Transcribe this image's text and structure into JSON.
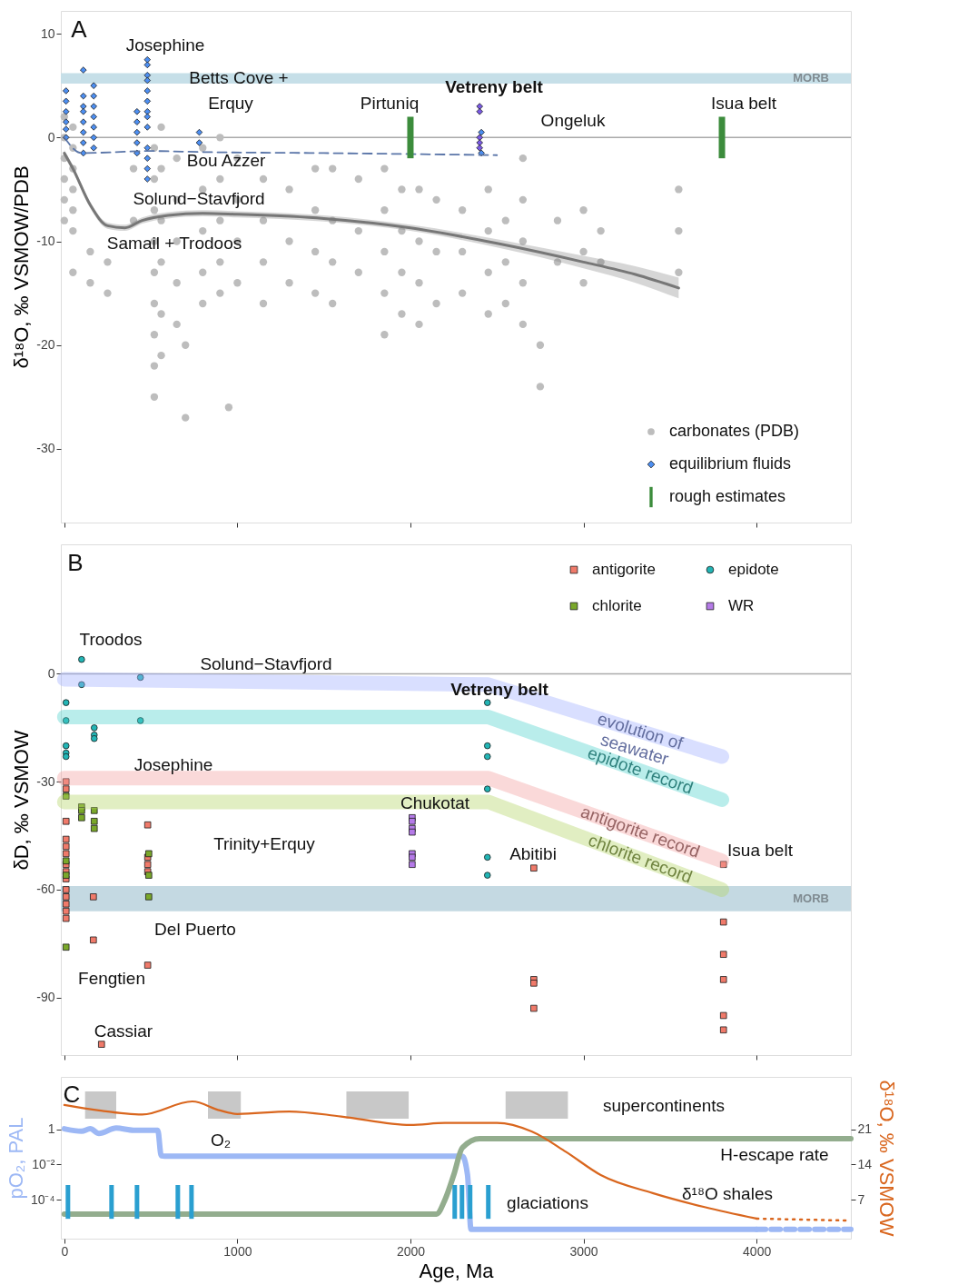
{
  "chart_data": [
    {
      "type": "scatter",
      "ylabel": "δ¹⁸O, ‰ VSMOW/PDB",
      "xlim": [
        -20,
        4545
      ],
      "xticks": [
        0,
        1000,
        2000,
        3000,
        4000
      ],
      "ylim": [
        -37.1,
        12.2
      ],
      "yticks": [
        -30,
        -20,
        -10,
        0,
        10
      ],
      "tick_labels": "y",
      "legend": "bottom right",
      "series": [
        {
          "name": "carbonates (PDB)",
          "marker": "circle",
          "color": "#bdbdbd",
          "x": [
            0,
            0,
            0,
            0,
            0,
            0,
            50,
            50,
            50,
            50,
            50,
            50,
            50,
            150,
            150,
            250,
            250,
            400,
            400,
            520,
            520,
            520,
            520,
            520,
            520,
            520,
            520,
            520,
            560,
            560,
            560,
            560,
            560,
            560,
            650,
            650,
            650,
            650,
            650,
            700,
            700,
            800,
            800,
            800,
            800,
            800,
            900,
            900,
            900,
            900,
            900,
            950,
            1000,
            1000,
            1000,
            1000,
            1150,
            1150,
            1150,
            1150,
            1300,
            1300,
            1300,
            1450,
            1450,
            1450,
            1450,
            1550,
            1550,
            1550,
            1550,
            1700,
            1700,
            1700,
            1850,
            1850,
            1850,
            1850,
            1850,
            1950,
            1950,
            1950,
            1950,
            2050,
            2050,
            2050,
            2050,
            2150,
            2150,
            2150,
            2300,
            2300,
            2300,
            2450,
            2450,
            2450,
            2450,
            2550,
            2550,
            2550,
            2650,
            2650,
            2650,
            2650,
            2650,
            2750,
            2750,
            2850,
            2850,
            3000,
            3000,
            3000,
            3100,
            3100,
            3550,
            3550,
            3550
          ],
          "values": [
            2,
            0,
            -2,
            -4,
            -6,
            -8,
            1,
            -1,
            -3,
            -5,
            -7,
            -9,
            -13,
            -11,
            -14,
            -12,
            -15,
            -3,
            -8,
            -1,
            -4,
            -7,
            -10,
            -13,
            -16,
            -19,
            -22,
            -25,
            1,
            -3,
            -8,
            -12,
            -17,
            -21,
            -2,
            -6,
            -10,
            -14,
            -18,
            -20,
            -27,
            -1,
            -5,
            -9,
            -13,
            -16,
            0,
            -4,
            -8,
            -12,
            -15,
            -26,
            -2,
            -6,
            -10,
            -14,
            -4,
            -8,
            -12,
            -16,
            -5,
            -10,
            -14,
            -3,
            -7,
            -11,
            -15,
            -3,
            -8,
            -12,
            -16,
            -4,
            -9,
            -13,
            -3,
            -7,
            -11,
            -15,
            -19,
            -5,
            -9,
            -13,
            -17,
            -5,
            -10,
            -14,
            -18,
            -6,
            -11,
            -16,
            -7,
            -11,
            -15,
            -5,
            -9,
            -13,
            -17,
            -8,
            -12,
            -16,
            -2,
            -6,
            -10,
            -14,
            -18,
            -20,
            -24,
            -8,
            -12,
            -7,
            -11,
            -14,
            -9,
            -12,
            -5,
            -9,
            -13
          ]
        },
        {
          "name": "equilibrium fluids",
          "marker": "diamond",
          "color": "#4d8ff2",
          "x": [
            10,
            10,
            10,
            10,
            10,
            10,
            110,
            110,
            110,
            110,
            110,
            110,
            110,
            110,
            170,
            170,
            170,
            170,
            170,
            170,
            170,
            420,
            420,
            420,
            420,
            420,
            480,
            480,
            480,
            480,
            480,
            480,
            480,
            480,
            480,
            480,
            480,
            480,
            480,
            780,
            780,
            2410,
            2410
          ],
          "values": [
            4.5,
            3.5,
            2.5,
            1.5,
            0.8,
            0,
            6.5,
            4,
            3,
            2.5,
            1.5,
            0.5,
            -0.5,
            -1.5,
            5,
            4,
            3,
            2,
            1,
            0,
            -1,
            2.5,
            1.5,
            0.5,
            -0.5,
            -1.5,
            7.5,
            7,
            6,
            5.5,
            4.5,
            3.5,
            2.5,
            2,
            1,
            -1,
            -2,
            -3,
            -4,
            0.5,
            -0.5,
            0.5,
            -1.5
          ]
        },
        {
          "marker": "diamond",
          "color": "#7a5ae6",
          "x": [
            2400,
            2400,
            2400,
            2400,
            2400
          ],
          "values": [
            3,
            2.5,
            0,
            -0.5,
            -1
          ]
        },
        {
          "type": "line",
          "color": "#777777",
          "x": [
            0,
            50,
            150,
            250,
            350,
            450,
            600,
            800,
            1000,
            1500,
            2000,
            2500,
            3000,
            3300,
            3550
          ],
          "values": [
            -1.5,
            -3,
            -6.5,
            -8.5,
            -8.7,
            -8,
            -7.5,
            -7.3,
            -7.4,
            -7.8,
            -8.7,
            -10.2,
            -12,
            -13.2,
            -14.5
          ],
          "lower": [
            -1.8,
            -3.3,
            -6.8,
            -8.8,
            -9,
            -8.3,
            -7.8,
            -7.6,
            -7.7,
            -8.1,
            -9,
            -10.6,
            -12.6,
            -14,
            -15.5
          ],
          "upper": [
            -1.2,
            -2.7,
            -6.2,
            -8.2,
            -8.4,
            -7.7,
            -7.2,
            -7,
            -7.1,
            -7.5,
            -8.4,
            -9.8,
            -11.4,
            -12.4,
            -13.5
          ]
        },
        {
          "type": "line",
          "color": "#5a75a8",
          "line_style": "dashed",
          "x": [
            0,
            100,
            500,
            800,
            1500,
            2500
          ],
          "values": [
            0,
            -1.5,
            -1.3,
            -1.4,
            -1.5,
            -1.7
          ]
        },
        {
          "name": "rough estimates",
          "type": "bar",
          "color": "#3c8c3c",
          "x": [
            2000,
            3800
          ],
          "base": [
            -2,
            -2
          ],
          "values": [
            4,
            4
          ]
        }
      ],
      "ref_lines": [
        {
          "axis": "y",
          "value": 0,
          "color": "#aaaaaa"
        }
      ],
      "bands": [
        {
          "axis": "y",
          "from": 5.2,
          "to": 6.2,
          "label": "MORB",
          "color": "#c6dfe8"
        }
      ],
      "annotations": [
        "A",
        "Josephine",
        "Betts Cove +",
        "Erquy",
        "Pirtuniq",
        "Vetreny belt",
        "Ongeluk",
        "Isua belt",
        "Bou Azzer",
        "Solund−Stavfjord",
        "Samail + Trodoos"
      ]
    },
    {
      "type": "scatter",
      "ylabel": "δD, ‰ VSMOW",
      "xlim": [
        -20,
        4545
      ],
      "xticks": [
        0,
        1000,
        2000,
        3000,
        4000
      ],
      "ylim": [
        -106,
        36
      ],
      "yticks": [
        -90,
        -60,
        -30,
        0
      ],
      "tick_labels": "y",
      "legend": "top right",
      "series": [
        {
          "name": "antigorite",
          "marker": "square",
          "color": "#f07a6a",
          "x": [
            10,
            10,
            10,
            10,
            10,
            10,
            10,
            10,
            10,
            10,
            10,
            10,
            10,
            10,
            168,
            168,
            482,
            482,
            482,
            482,
            482,
            215,
            2713,
            2713,
            2713,
            2713,
            3809,
            3809,
            3809,
            3809,
            3809,
            3809
          ],
          "values": [
            -30,
            -32,
            -41,
            -46,
            -48,
            -50,
            -53,
            -55,
            -57,
            -60,
            -62,
            -64,
            -66,
            -68,
            -62,
            -74,
            -42,
            -51,
            -53,
            -55,
            -81,
            -103,
            -54,
            -85,
            -86,
            -93,
            -53,
            -69,
            -78,
            -85,
            -95,
            -99
          ]
        },
        {
          "name": "chlorite",
          "marker": "square",
          "color": "#7aa82a",
          "x": [
            10,
            10,
            10,
            10,
            100,
            100,
            100,
            173,
            173,
            173,
            488,
            488,
            488
          ],
          "values": [
            -34,
            -52,
            -56,
            -76,
            -37,
            -38,
            -40,
            -38,
            -41,
            -43,
            -50,
            -56,
            -62
          ]
        },
        {
          "name": "epidote",
          "marker": "circle",
          "color": "#22b5b5",
          "x": [
            100,
            100,
            10,
            10,
            10,
            10,
            10,
            440,
            440,
            173,
            173,
            173,
            2445,
            2445,
            2445,
            2445,
            2445,
            2445
          ],
          "values": [
            4,
            -3,
            -8,
            -13,
            -20,
            -22,
            -23,
            -1,
            -13,
            -15,
            -17,
            -18,
            -8,
            -20,
            -23,
            -32,
            -51,
            -56
          ]
        },
        {
          "name": "WR",
          "marker": "square",
          "color": "#b57ae8",
          "x": [
            2010,
            2010,
            2010,
            2010,
            2010,
            2010,
            2010
          ],
          "values": [
            -40,
            -41,
            -43,
            -44,
            -50,
            -51,
            -53
          ]
        },
        {
          "name": "evolution of\nseawater",
          "type": "line",
          "color": "#9fb0ff",
          "x": [
            0,
            2450,
            3800
          ],
          "values": [
            -1.5,
            -3,
            -23
          ]
        },
        {
          "name": "epidote record",
          "type": "line",
          "color": "#4fd3cc",
          "x": [
            0,
            2450,
            3800
          ],
          "values": [
            -12,
            -12,
            -35
          ]
        },
        {
          "name": "antigorite record",
          "type": "line",
          "color": "#f2a0a0",
          "x": [
            0,
            2450,
            3800
          ],
          "values": [
            -29,
            -29,
            -52
          ]
        },
        {
          "name": "chlorite record",
          "type": "line",
          "color": "#b4d466",
          "x": [
            0,
            2450,
            3800
          ],
          "values": [
            -35.6,
            -35.6,
            -60
          ]
        }
      ],
      "ref_lines": [
        {
          "axis": "y",
          "value": 0,
          "color": "#aaaaaa"
        }
      ],
      "bands": [
        {
          "axis": "y",
          "from": -66,
          "to": -59,
          "label": "MORB",
          "color": "#c4d9e2"
        }
      ],
      "annotations": [
        "B",
        "Troodos",
        "Solund−Stavfjord",
        "Vetreny belt",
        "Josephine",
        "Chukotat",
        "Trinity+Erquy",
        "Abitibi",
        "Isua belt",
        "Del Puerto",
        "Fengtien",
        "Cassiar"
      ]
    },
    {
      "type": "line",
      "xlabel": "Age, Ma",
      "ylabel": "pO₂, PAL",
      "y2label": "δ¹⁸O, ‰ VSMOW",
      "xlim": [
        -20,
        4545
      ],
      "xticks": [
        0,
        1000,
        2000,
        3000,
        4000
      ],
      "log": "y",
      "ylim": [
        5.9e-07,
        1000
      ],
      "yticks": [
        {
          "value": 0.0001,
          "label": "10⁻⁴"
        },
        {
          "value": 0.01,
          "label": "10⁻²"
        },
        1
      ],
      "y2lim": [
        -0.8,
        31.5
      ],
      "y2ticks": [
        7,
        14,
        21
      ],
      "series": [
        {
          "color": "#9db8f5",
          "x": [
            0,
            100,
            150,
            200,
            300,
            400,
            540,
            560,
            600,
            2300,
            2330,
            2350,
            4000
          ],
          "values": [
            1.1,
            0.8,
            1.1,
            0.6,
            1.2,
            0.9,
            0.9,
            0.032,
            0.03,
            0.03,
            0.0025,
            2e-06,
            2e-06
          ]
        },
        {
          "color": "#9db8f5",
          "line_style": "dashed",
          "x": [
            4000,
            4545
          ],
          "values": [
            2e-06,
            2e-06
          ]
        },
        {
          "color": "#93ad8e",
          "x": [
            0,
            2150,
            2200,
            2250,
            2300,
            2400,
            4545
          ],
          "values": [
            1.5e-05,
            1.5e-05,
            0.0001,
            0.0025,
            0.09,
            0.3,
            0.3
          ]
        },
        {
          "type": "bar",
          "color": "#2a9fd0",
          "x": [
            21,
            273,
            420,
            656,
            735,
            2256,
            2298,
            2345,
            2450
          ],
          "base": [
            8e-06,
            8e-06,
            8e-06,
            8e-06,
            8e-06,
            8e-06,
            8e-06,
            8e-06,
            8e-06
          ],
          "values": [
            0.00067,
            0.00067,
            0.00067,
            0.00067,
            0.00067,
            0.00067,
            0.00067,
            0.00067,
            0.00067
          ]
        },
        {
          "axis": "y2",
          "color": "#d9661e",
          "x": [
            0,
            200,
            450,
            740,
            900,
            1000,
            1300,
            1600,
            2000,
            2200,
            2500,
            2700,
            2900,
            3100,
            3400,
            3700,
            4000
          ],
          "values": [
            25.9,
            24.8,
            24.0,
            26.6,
            24.8,
            24.1,
            24.6,
            23.6,
            21.9,
            22.3,
            22.3,
            20.6,
            16.5,
            11.9,
            8.3,
            5.5,
            3.2
          ]
        },
        {
          "axis": "y2",
          "color": "#d9661e",
          "line_style": "dotted",
          "x": [
            4000,
            4545
          ],
          "values": [
            3.2,
            2.8
          ]
        }
      ],
      "bands": [
        {
          "axis": "x",
          "from": 120,
          "to": 300,
          "color": "#c8c8c8"
        },
        {
          "axis": "x",
          "from": 830,
          "to": 1020,
          "color": "#c8c8c8"
        },
        {
          "axis": "x",
          "from": 1630,
          "to": 1990,
          "color": "#c8c8c8"
        },
        {
          "axis": "x",
          "from": 2550,
          "to": 2910,
          "color": "#c8c8c8"
        }
      ],
      "annotations": [
        "C",
        "supercontinents",
        "O₂",
        "H-escape rate",
        "glaciations",
        "δ¹⁸O shales"
      ]
    }
  ]
}
